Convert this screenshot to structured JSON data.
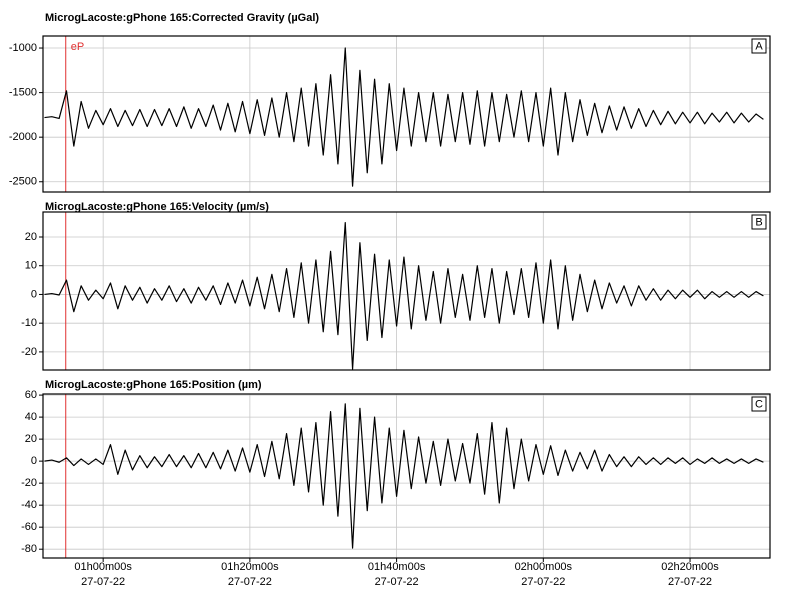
{
  "chart_data": [
    {
      "type": "line",
      "title": "MicrogLacoste:gPhone 165:Corrected Gravity (µGal)",
      "panel_label": "A",
      "color": "#000000",
      "markers": [
        {
          "label": "eP",
          "x": 54.9,
          "color": "#e03030"
        }
      ],
      "xlim": [
        51.8,
        150.9
      ],
      "xticks": [
        60,
        80,
        100,
        120,
        140
      ],
      "ylim": [
        -2615,
        -865
      ],
      "yticks": [
        -1000,
        -1500,
        -2000,
        -2500
      ],
      "grid": true,
      "x": [
        52,
        53,
        54,
        55,
        56,
        57,
        58,
        59,
        60,
        61,
        62,
        63,
        64,
        65,
        66,
        67,
        68,
        69,
        70,
        71,
        72,
        73,
        74,
        75,
        76,
        77,
        78,
        79,
        80,
        81,
        82,
        83,
        84,
        85,
        86,
        87,
        88,
        89,
        90,
        91,
        92,
        93,
        94,
        95,
        96,
        97,
        98,
        99,
        100,
        101,
        102,
        103,
        104,
        105,
        106,
        107,
        108,
        109,
        110,
        111,
        112,
        113,
        114,
        115,
        116,
        117,
        118,
        119,
        120,
        121,
        122,
        123,
        124,
        125,
        126,
        127,
        128,
        129,
        130,
        131,
        132,
        133,
        134,
        135,
        136,
        137,
        138,
        139,
        140,
        141,
        142,
        143,
        144,
        145,
        146,
        147,
        148,
        149,
        150
      ],
      "values": [
        -1780,
        -1770,
        -1790,
        -1480,
        -2100,
        -1600,
        -1900,
        -1700,
        -1860,
        -1680,
        -1880,
        -1700,
        -1870,
        -1690,
        -1880,
        -1690,
        -1870,
        -1680,
        -1880,
        -1660,
        -1900,
        -1680,
        -1880,
        -1640,
        -1920,
        -1620,
        -1940,
        -1600,
        -1960,
        -1580,
        -1980,
        -1560,
        -2000,
        -1500,
        -2050,
        -1450,
        -2100,
        -1400,
        -2200,
        -1300,
        -2300,
        -1000,
        -2550,
        -1250,
        -2400,
        -1350,
        -2300,
        -1400,
        -2150,
        -1450,
        -2100,
        -1500,
        -2050,
        -1500,
        -2100,
        -1520,
        -2050,
        -1500,
        -2080,
        -1480,
        -2100,
        -1500,
        -2050,
        -1520,
        -2000,
        -1480,
        -2050,
        -1500,
        -2100,
        -1450,
        -2200,
        -1500,
        -2050,
        -1580,
        -1980,
        -1620,
        -1950,
        -1650,
        -1920,
        -1660,
        -1900,
        -1680,
        -1880,
        -1700,
        -1860,
        -1710,
        -1850,
        -1720,
        -1840,
        -1720,
        -1850,
        -1730,
        -1830,
        -1720,
        -1840,
        -1730,
        -1830,
        -1740,
        -1800
      ]
    },
    {
      "type": "line",
      "title": "MicrogLacoste:gPhone 165:Velocity (µm/s)",
      "panel_label": "B",
      "color": "#000000",
      "markers": [
        {
          "x": 54.9,
          "color": "#e03030"
        }
      ],
      "xlim": [
        51.8,
        150.9
      ],
      "xticks": [
        60,
        80,
        100,
        120,
        140
      ],
      "ylim": [
        -26.3,
        28.7
      ],
      "yticks": [
        20,
        10,
        0,
        -10,
        -20
      ],
      "grid": true,
      "x": [
        52,
        53,
        54,
        55,
        56,
        57,
        58,
        59,
        60,
        61,
        62,
        63,
        64,
        65,
        66,
        67,
        68,
        69,
        70,
        71,
        72,
        73,
        74,
        75,
        76,
        77,
        78,
        79,
        80,
        81,
        82,
        83,
        84,
        85,
        86,
        87,
        88,
        89,
        90,
        91,
        92,
        93,
        94,
        95,
        96,
        97,
        98,
        99,
        100,
        101,
        102,
        103,
        104,
        105,
        106,
        107,
        108,
        109,
        110,
        111,
        112,
        113,
        114,
        115,
        116,
        117,
        118,
        119,
        120,
        121,
        122,
        123,
        124,
        125,
        126,
        127,
        128,
        129,
        130,
        131,
        132,
        133,
        134,
        135,
        136,
        137,
        138,
        139,
        140,
        141,
        142,
        143,
        144,
        145,
        146,
        147,
        148,
        149,
        150
      ],
      "values": [
        0,
        0.3,
        -0.2,
        5,
        -6,
        3,
        -2,
        1.5,
        -1.5,
        4,
        -5,
        3,
        -2,
        2.5,
        -3,
        2,
        -2,
        3,
        -2.5,
        2,
        -3,
        2.5,
        -2,
        3,
        -3.5,
        4,
        -3,
        5,
        -4,
        6,
        -5,
        7,
        -6,
        9,
        -8,
        11,
        -10,
        12,
        -13,
        15,
        -14,
        25,
        -26,
        18,
        -16,
        14,
        -15,
        12,
        -11,
        13,
        -12,
        10,
        -9,
        8,
        -10,
        9,
        -8,
        7,
        -9,
        10,
        -8,
        9,
        -10,
        8,
        -7,
        9,
        -8,
        11,
        -10,
        12,
        -12,
        10,
        -9,
        7,
        -6,
        5,
        -5,
        4,
        -3,
        3,
        -4,
        3,
        -2,
        2,
        -2,
        1.5,
        -1.5,
        1.5,
        -1,
        1.5,
        -1.5,
        1,
        -1,
        1,
        -1,
        1,
        -1,
        1,
        -0.5
      ]
    },
    {
      "type": "line",
      "title": "MicrogLacoste:gPhone 165:Position (µm)",
      "panel_label": "C",
      "color": "#000000",
      "markers": [
        {
          "x": 54.9,
          "color": "#e03030"
        }
      ],
      "xlim": [
        51.8,
        150.9
      ],
      "xticks": [
        {
          "value": 60,
          "label": "01h00m00s",
          "sublabel": "27-07-22"
        },
        {
          "value": 80,
          "label": "01h20m00s",
          "sublabel": "27-07-22"
        },
        {
          "value": 100,
          "label": "01h40m00s",
          "sublabel": "27-07-22"
        },
        {
          "value": 120,
          "label": "02h00m00s",
          "sublabel": "27-07-22"
        },
        {
          "value": 140,
          "label": "02h20m00s",
          "sublabel": "27-07-22"
        }
      ],
      "ylim": [
        -88,
        61
      ],
      "yticks": [
        60,
        40,
        20,
        0,
        -20,
        -40,
        -60,
        -80
      ],
      "grid": true,
      "x": [
        52,
        53,
        54,
        55,
        56,
        57,
        58,
        59,
        60,
        61,
        62,
        63,
        64,
        65,
        66,
        67,
        68,
        69,
        70,
        71,
        72,
        73,
        74,
        75,
        76,
        77,
        78,
        79,
        80,
        81,
        82,
        83,
        84,
        85,
        86,
        87,
        88,
        89,
        90,
        91,
        92,
        93,
        94,
        95,
        96,
        97,
        98,
        99,
        100,
        101,
        102,
        103,
        104,
        105,
        106,
        107,
        108,
        109,
        110,
        111,
        112,
        113,
        114,
        115,
        116,
        117,
        118,
        119,
        120,
        121,
        122,
        123,
        124,
        125,
        126,
        127,
        128,
        129,
        130,
        131,
        132,
        133,
        134,
        135,
        136,
        137,
        138,
        139,
        140,
        141,
        142,
        143,
        144,
        145,
        146,
        147,
        148,
        149,
        150
      ],
      "values": [
        0,
        1,
        -1,
        3,
        -4,
        2,
        -3,
        2,
        -3,
        15,
        -12,
        10,
        -8,
        5,
        -6,
        4,
        -5,
        6,
        -5,
        5,
        -6,
        7,
        -6,
        8,
        -7,
        10,
        -9,
        12,
        -10,
        15,
        -14,
        18,
        -16,
        25,
        -22,
        30,
        -28,
        35,
        -40,
        45,
        -50,
        52,
        -79,
        48,
        -45,
        40,
        -38,
        30,
        -32,
        28,
        -25,
        22,
        -20,
        18,
        -22,
        20,
        -18,
        16,
        -20,
        25,
        -30,
        35,
        -38,
        30,
        -25,
        20,
        -18,
        15,
        -12,
        14,
        -13,
        10,
        -9,
        8,
        -7,
        10,
        -9,
        6,
        -5,
        4,
        -5,
        4,
        -3,
        3,
        -3,
        3,
        -2,
        3,
        -3,
        2,
        -2,
        3,
        -2,
        2,
        -2,
        2,
        -2,
        2,
        -1
      ]
    }
  ]
}
